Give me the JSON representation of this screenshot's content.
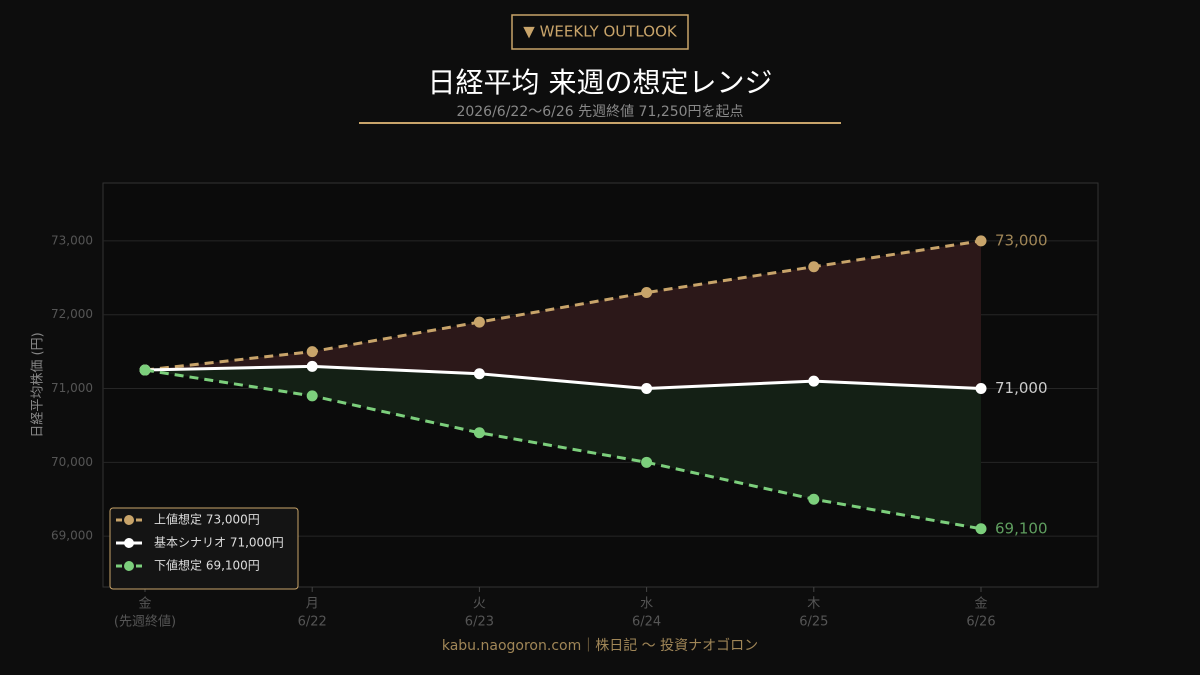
{
  "badge": "▼ WEEKLY OUTLOOK",
  "footer": "kabu.naogoron.com｜株日記 〜 投資ナオゴロン",
  "chart_data": {
    "type": "line",
    "title": "日経平均 来週の想定レンジ",
    "subtitle": "2026/6/22〜6/26  先週終値 71,250円を起点",
    "y_label": "日経平均株価 (円)",
    "categories": [
      "金",
      "月",
      "火",
      "水",
      "木",
      "金"
    ],
    "dates": [
      "(先週終値)",
      "6/22",
      "6/23",
      "6/24",
      "6/25",
      "6/26"
    ],
    "ylim": [
      68311,
      73784
    ],
    "yticks": [
      {
        "value": 69000,
        "label": "69,000"
      },
      {
        "value": 70000,
        "label": "70,000"
      },
      {
        "value": 71000,
        "label": "71,000"
      },
      {
        "value": 72000,
        "label": "72,000"
      },
      {
        "value": 73000,
        "label": "73,000"
      }
    ],
    "grid": true,
    "legend": "lower-left",
    "series": [
      {
        "name": "上値想定 73,000円",
        "color": "#c8a46a",
        "dashed": true,
        "label_color": "#a08657",
        "values": [
          71250,
          71500,
          71900,
          72300,
          72650,
          73000
        ],
        "value_labels": [
          null,
          null,
          null,
          null,
          null,
          "73,000"
        ]
      },
      {
        "name": "基本シナリオ 71,000円",
        "color": "#ffffff",
        "dashed": false,
        "label_color": "#cccccc",
        "values": [
          71250,
          71300,
          71200,
          71000,
          71100,
          71000
        ],
        "value_labels": [
          null,
          null,
          null,
          null,
          null,
          "71,000"
        ]
      },
      {
        "name": "下値想定 69,100円",
        "color": "#7ccf7c",
        "dashed": true,
        "label_color": "#5f9e5f",
        "values": [
          71250,
          70900,
          70400,
          70000,
          69500,
          69100
        ],
        "value_labels": [
          null,
          null,
          null,
          null,
          null,
          "69,100"
        ]
      }
    ],
    "fills": [
      "#2c1819",
      "#142015"
    ]
  }
}
